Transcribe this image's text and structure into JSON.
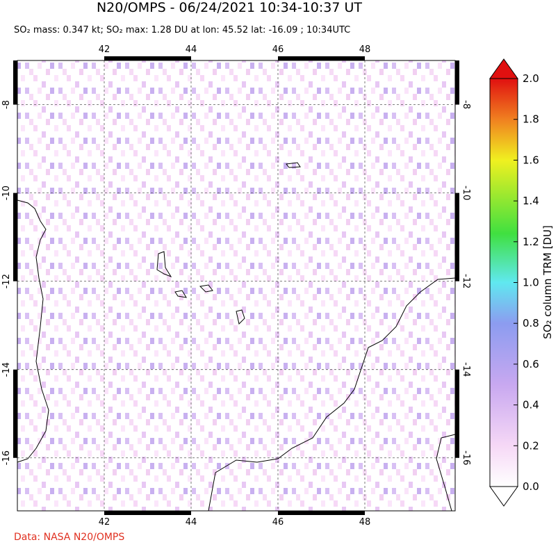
{
  "title": "N20/OMPS - 06/24/2021 10:34-10:37 UT",
  "subtitle": "SO₂ mass: 0.347 kt; SO₂ max: 1.28 DU at lon: 45.52 lat: -16.09 ; 10:34UTC",
  "map": {
    "xlim": [
      40,
      50.08
    ],
    "ylim": [
      -17.2,
      -7.0
    ],
    "xticks": [
      42,
      44,
      46,
      48
    ],
    "yticks": [
      -8,
      -10,
      -12,
      -14,
      -16
    ]
  },
  "colorbar": {
    "label": "SO₂ column TRM [DU]",
    "lim": [
      0,
      2
    ],
    "ticks": [
      {
        "value": 0,
        "label": "0.0"
      },
      0.2,
      0.4,
      0.6,
      0.8,
      {
        "value": 1,
        "label": "1.0"
      },
      1.2,
      1.4,
      1.6,
      1.8,
      {
        "value": 2,
        "label": "2.0"
      }
    ]
  },
  "credit": "Data: NASA N20/OMPS"
}
